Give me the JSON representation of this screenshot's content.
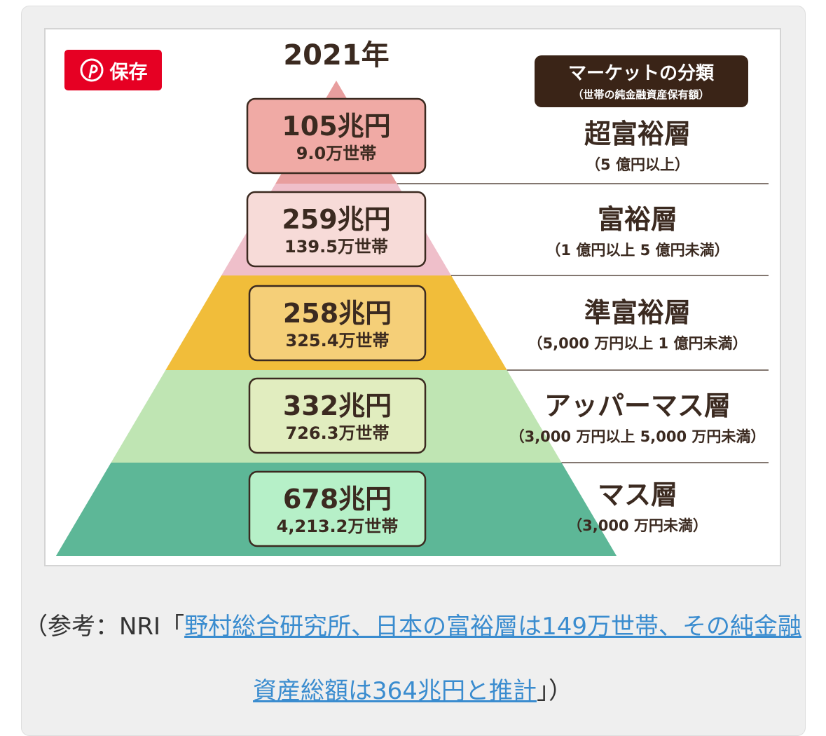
{
  "save_button": {
    "label": "保存",
    "icon": "pinterest-icon"
  },
  "year": "2021年",
  "legend": {
    "title": "マーケットの分類",
    "subtitle": "（世帯の純金融資産保有額）"
  },
  "tiers": [
    {
      "amount": "105兆円",
      "households": "9.0万世帯",
      "name": "超富裕層",
      "range": "（5 億円以上）",
      "fill": "#e89e9e",
      "box_fill": "#f0aaa5"
    },
    {
      "amount": "259兆円",
      "households": "139.5万世帯",
      "name": "富裕層",
      "range": "（1 億円以上 5 億円未満）",
      "fill": "#efbfca",
      "box_fill": "#f7dbd8"
    },
    {
      "amount": "258兆円",
      "households": "325.4万世帯",
      "name": "準富裕層",
      "range": "（5,000 万円以上 1 億円未満）",
      "fill": "#f1bd3a",
      "box_fill": "#f5cf78"
    },
    {
      "amount": "332兆円",
      "households": "726.3万世帯",
      "name": "アッパーマス層",
      "range": "（3,000 万円以上 5,000 万円未満）",
      "fill": "#bfe5b3",
      "box_fill": "#e1edbf"
    },
    {
      "amount": "678兆円",
      "households": "4,213.2万世帯",
      "name": "マス層",
      "range": "（3,000 万円未満）",
      "fill": "#5db797",
      "box_fill": "#b6f0c8"
    }
  ],
  "colors": {
    "text_dark": "#3b2a20",
    "legend_bg": "#3a2417",
    "outline": "#3b2a20",
    "save_red": "#e60023",
    "link": "#3a8ccf"
  },
  "caption": {
    "prefix": "（参考：NRI「",
    "link_text": "野村総合研究所、日本の富裕層は149万世帯、その純金融資産総額は364兆円と推計",
    "suffix": "」）"
  }
}
